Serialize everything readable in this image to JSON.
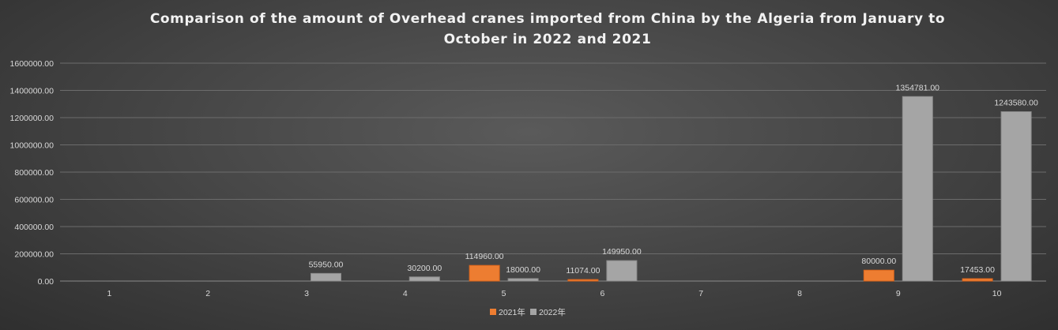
{
  "chart_data": {
    "type": "bar",
    "title_lines": [
      "Comparison of the amount of Overhead cranes imported from China by the Algeria from January to",
      "October in 2022 and 2021"
    ],
    "categories": [
      "1",
      "2",
      "3",
      "4",
      "5",
      "6",
      "7",
      "8",
      "9",
      "10"
    ],
    "y_ticks": [
      "0.00",
      "200000.00",
      "400000.00",
      "600000.00",
      "800000.00",
      "1000000.00",
      "1200000.00",
      "1400000.00",
      "1600000.00"
    ],
    "ylim": [
      0,
      1600000
    ],
    "grid": true,
    "legend_position": "bottom",
    "series": [
      {
        "name": "2021年",
        "color": "#ed7d31",
        "values": [
          0,
          0,
          0,
          0,
          114960,
          11074,
          0,
          0,
          80000,
          17453
        ],
        "labels": [
          "",
          "",
          "",
          "",
          "114960.00",
          "11074.00",
          "",
          "",
          "80000.00",
          "17453.00"
        ]
      },
      {
        "name": "2022年",
        "color": "#a5a5a5",
        "values": [
          0,
          0,
          55950,
          30200,
          18000,
          149950,
          0,
          0,
          1354781,
          1243580
        ],
        "labels": [
          "",
          "",
          "55950.00",
          "30200.00",
          "18000.00",
          "149950.00",
          "",
          "",
          "1354781.00",
          "1243580.00"
        ]
      }
    ]
  }
}
